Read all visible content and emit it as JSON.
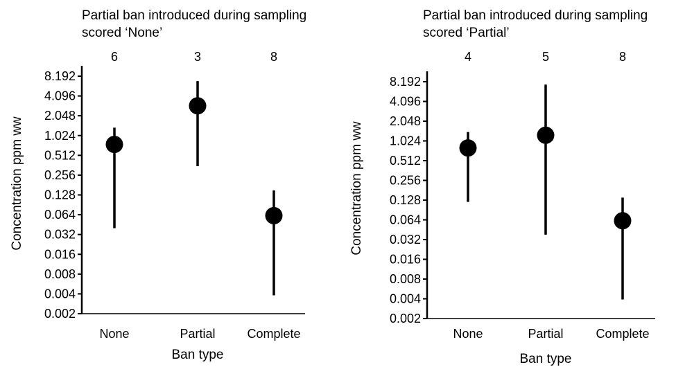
{
  "chart_data": [
    {
      "type": "scatter",
      "subtype": "point-with-range",
      "title_lines": [
        "Partial ban introduced during sampling",
        "scored ‘None’"
      ],
      "xlabel": "Ban type",
      "ylabel": "Concentration ppm ww",
      "yscale": "log2",
      "ylim": [
        0.002,
        8.192
      ],
      "yticks": [
        "0.002",
        "0.004",
        "0.008",
        "0.016",
        "0.032",
        "0.064",
        "0.128",
        "0.256",
        "0.512",
        "1.024",
        "2.048",
        "4.096",
        "8.192"
      ],
      "categories": [
        "None",
        "Partial",
        "Complete"
      ],
      "counts": [
        "6",
        "3",
        "8"
      ],
      "points": [
        {
          "category": "None",
          "value": 0.75,
          "low": 0.04,
          "high": 1.35
        },
        {
          "category": "Partial",
          "value": 2.9,
          "low": 0.35,
          "high": 6.9
        },
        {
          "category": "Complete",
          "value": 0.062,
          "low": 0.0038,
          "high": 0.15
        }
      ],
      "grid": false,
      "legend": "none",
      "marker_color": "#000000"
    },
    {
      "type": "scatter",
      "subtype": "point-with-range",
      "title_lines": [
        "Partial ban introduced during sampling",
        "scored ‘Partial’"
      ],
      "xlabel": "Ban type",
      "ylabel": "Concentration ppm ww",
      "yscale": "log2",
      "ylim": [
        0.002,
        8.192
      ],
      "yticks": [
        "0.002",
        "0.004",
        "0.008",
        "0.016",
        "0.032",
        "0.064",
        "0.128",
        "0.256",
        "0.512",
        "1.024",
        "2.048",
        "4.096",
        "8.192"
      ],
      "categories": [
        "None",
        "Partial",
        "Complete"
      ],
      "counts": [
        "4",
        "5",
        "8"
      ],
      "points": [
        {
          "category": "None",
          "value": 0.8,
          "low": 0.12,
          "high": 1.4
        },
        {
          "category": "Partial",
          "value": 1.25,
          "low": 0.038,
          "high": 7.4
        },
        {
          "category": "Complete",
          "value": 0.062,
          "low": 0.0039,
          "high": 0.14
        }
      ],
      "grid": false,
      "legend": "none",
      "marker_color": "#000000"
    }
  ]
}
